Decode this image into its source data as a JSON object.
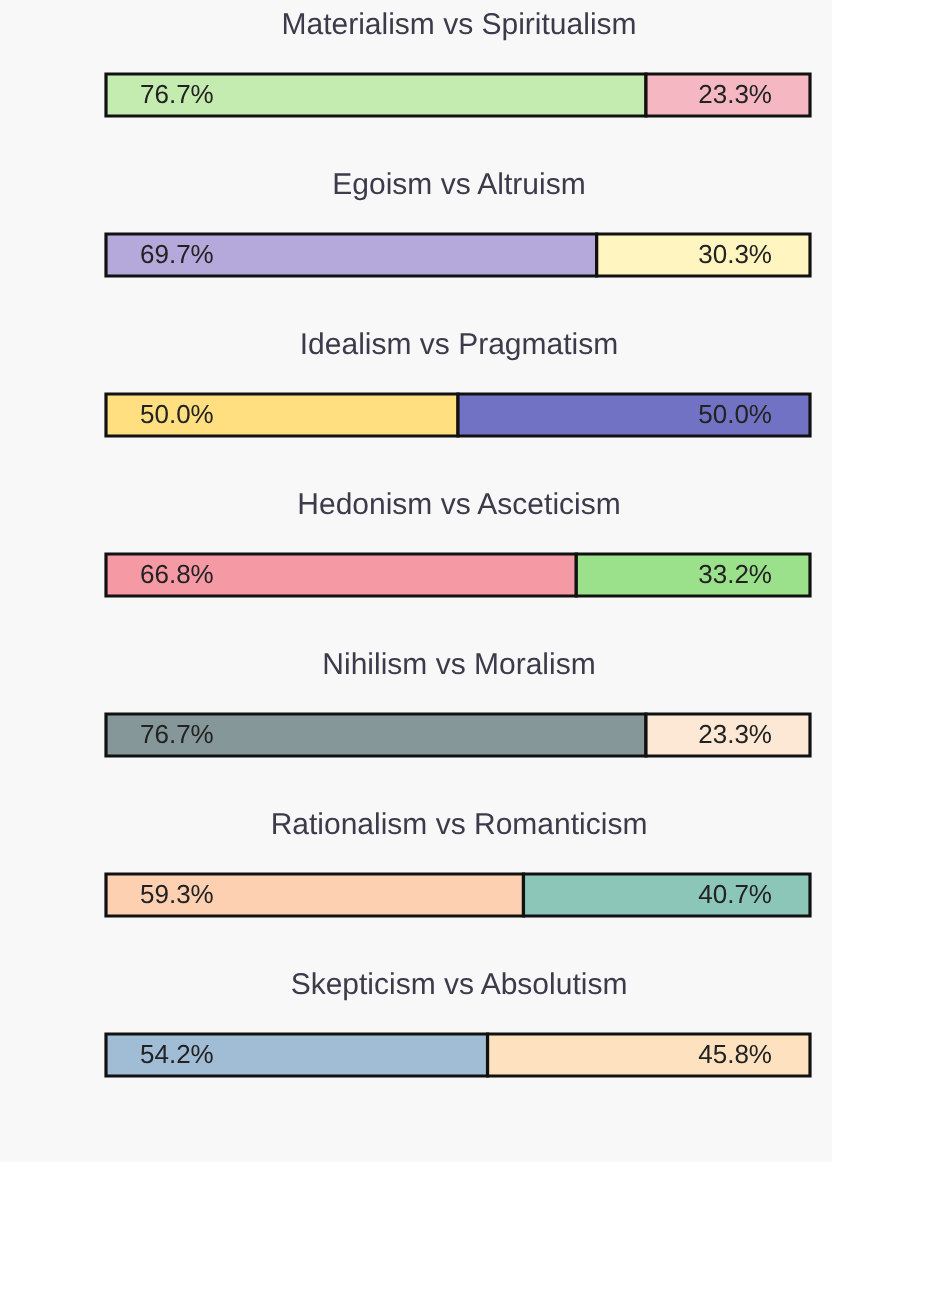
{
  "chart_data": {
    "type": "bar",
    "orientation": "horizontal",
    "stacked": true,
    "tick_labels": "y",
    "xlim": [
      0,
      100
    ],
    "categories": [
      "Materialism vs Spiritualism",
      "Egoism vs Altruism",
      "Idealism vs Pragmatism",
      "Hedonism vs Asceticism",
      "Nihilism vs Moralism",
      "Rationalism vs Romanticism",
      "Skepticism vs Absolutism"
    ],
    "series": [
      {
        "colors": [
          "#c5ecb0",
          "#b5a8db",
          "#ffdf80",
          "#f59aa5",
          "#869799",
          "#fdd0b1",
          "#a1bcd5"
        ],
        "values": [
          76.7,
          69.7,
          50.0,
          66.8,
          76.7,
          59.3,
          54.2
        ],
        "value_labels": [
          "76.7%",
          "69.7%",
          "50.0%",
          "66.8%",
          "76.7%",
          "59.3%",
          "54.2%"
        ]
      },
      {
        "colors": [
          "#f5b8c3",
          "#fff5c0",
          "#7272c4",
          "#9be08a",
          "#fde8d5",
          "#8bc6b9",
          "#fee2bf"
        ],
        "values": [
          23.3,
          30.3,
          50.0,
          33.2,
          23.3,
          40.7,
          45.8
        ],
        "value_labels": [
          "23.3%",
          "30.3%",
          "50.0%",
          "33.2%",
          "23.3%",
          "40.7%",
          "45.8%"
        ]
      }
    ]
  }
}
